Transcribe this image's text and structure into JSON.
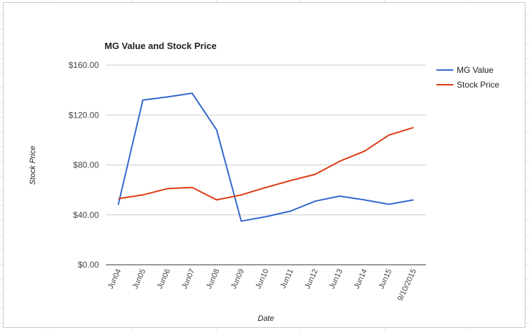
{
  "chart_data": {
    "type": "line",
    "title": "MG Value and Stock Price",
    "xlabel": "Date",
    "ylabel": "Stock Price",
    "categories": [
      "Jun04",
      "Jun05",
      "Jun06",
      "Jun07",
      "Jun08",
      "Jun09",
      "Jun10",
      "Jun11",
      "Jun12",
      "Jun13",
      "Jun14",
      "Jun15",
      "9/10/2015"
    ],
    "y_ticks": [
      "$0.00",
      "$40.00",
      "$80.00",
      "$120.00",
      "$160.00"
    ],
    "ylim": [
      0,
      160
    ],
    "grid": true,
    "legend_position": "right",
    "series": [
      {
        "name": "MG Value",
        "color": "#3366cc",
        "values": [
          48,
          132,
          134.5,
          137.5,
          108,
          35,
          38.5,
          43,
          51,
          55,
          52,
          48.5,
          52
        ]
      },
      {
        "name": "Stock Price",
        "color": "#dc3912",
        "values": [
          53,
          56,
          61,
          62,
          52,
          56,
          62,
          67.5,
          72.5,
          83,
          91,
          104,
          110
        ]
      }
    ]
  }
}
